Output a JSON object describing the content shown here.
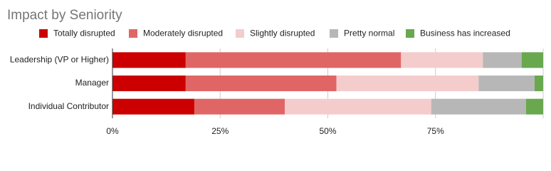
{
  "chart_data": {
    "type": "stacked_bar_horizontal",
    "title": "Impact by Seniority",
    "categories": [
      "Leadership (VP or Higher)",
      "Manager",
      "Individual Contributor"
    ],
    "series": [
      {
        "name": "Totally disrupted",
        "color": "#cc0000",
        "values": [
          17,
          17,
          19
        ]
      },
      {
        "name": "Moderately disrupted",
        "color": "#e06666",
        "values": [
          50,
          35,
          21
        ]
      },
      {
        "name": "Slightly disrupted",
        "color": "#f4cccc",
        "values": [
          19,
          33,
          34
        ]
      },
      {
        "name": "Pretty normal",
        "color": "#b7b7b7",
        "values": [
          9,
          13,
          22
        ]
      },
      {
        "name": "Business has increased",
        "color": "#6aa84f",
        "values": [
          5,
          2,
          4
        ]
      }
    ],
    "xlim": [
      0,
      100
    ],
    "xticks": [
      {
        "value": 0,
        "label": "0%"
      },
      {
        "value": 25,
        "label": "25%"
      },
      {
        "value": 50,
        "label": "50%"
      },
      {
        "value": 75,
        "label": "75%"
      }
    ],
    "grid": true,
    "legend": "top"
  }
}
